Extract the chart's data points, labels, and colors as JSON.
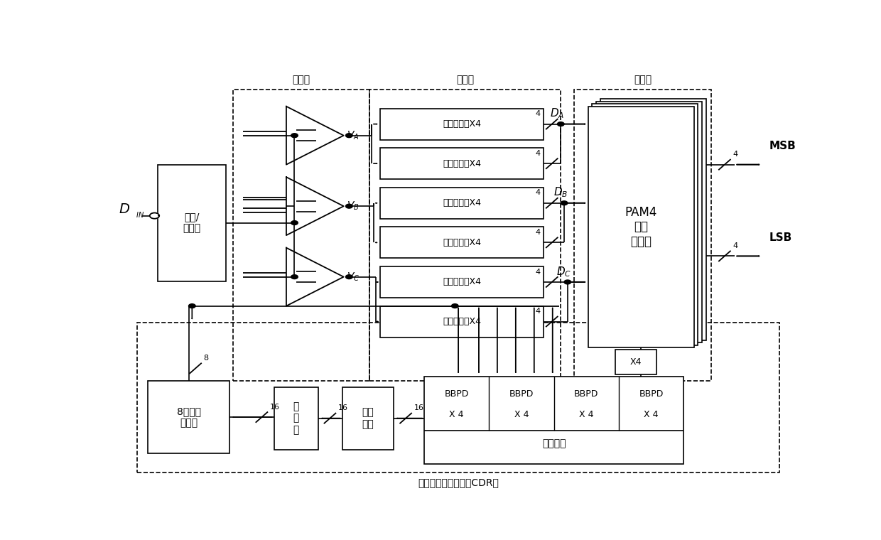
{
  "bg": "#ffffff",
  "lc": "#000000",
  "fig_w": 12.4,
  "fig_h": 7.6,
  "dpi": 100,
  "labels": {
    "din": "D",
    "din_sub": "IN",
    "amp": "均衡/\n放大器",
    "VA": "V",
    "VA_sub": "A",
    "VB": "V",
    "VB_sub": "B",
    "VC": "V",
    "VC_sub": "C",
    "data_samp": "数据采样器X4",
    "edge_samp": "边沿采样器X4",
    "DA": "D",
    "DA_sub": "A",
    "DB": "D",
    "DB_sub": "B",
    "DC": "D",
    "DC_sub": "C",
    "pam4": "PAM4\n数字\n译码器",
    "x4": "X4",
    "msb": "MSB",
    "lsb": "LSB",
    "bbpd": "BBPD",
    "x4s": "X 4",
    "voting": "投票电路",
    "clock_gen": "8相时钟\n产生器",
    "encoder": "编\n码\n器",
    "dig_filter": "数字\n滤波",
    "cdr": "时钟数据恢复电路（CDR）",
    "comparator": "比较器",
    "sampler_grp": "采样器",
    "decoder_grp": "译码器",
    "n4": "4",
    "n8": "8",
    "n16": "16"
  }
}
